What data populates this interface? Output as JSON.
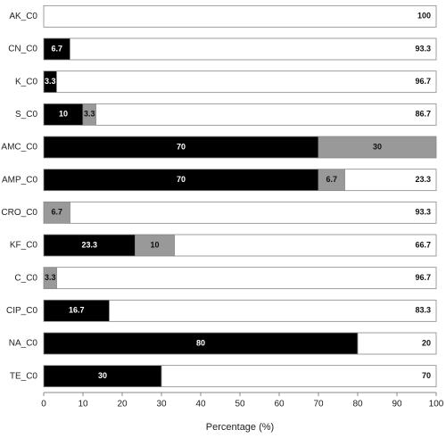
{
  "chart_data": {
    "type": "stacked-bar-horizontal",
    "categories": [
      "AK_C0",
      "CN_C0",
      "K_C0",
      "S_C0",
      "AMC_C0",
      "AMP_C0",
      "CRO_C0",
      "KF_C0",
      "C_C0",
      "CIP_C0",
      "NA_C0",
      "TE_C0"
    ],
    "series": [
      {
        "color": "#000000",
        "values": [
          null,
          6.7,
          3.3,
          10,
          70,
          70,
          null,
          23.3,
          null,
          16.7,
          80,
          30
        ]
      },
      {
        "color": "#999999",
        "values": [
          null,
          null,
          null,
          3.3,
          30,
          6.7,
          6.7,
          10,
          3.3,
          null,
          null,
          null
        ]
      },
      {
        "color": "#ffffff",
        "values": [
          100,
          93.3,
          96.7,
          86.7,
          null,
          23.3,
          93.3,
          66.7,
          96.7,
          83.3,
          20,
          70
        ]
      }
    ],
    "x_label": "Percentage (%)",
    "xlim": [
      0,
      100
    ],
    "xticks": [
      0,
      10,
      20,
      30,
      40,
      50,
      60,
      70,
      80,
      90,
      100
    ]
  }
}
